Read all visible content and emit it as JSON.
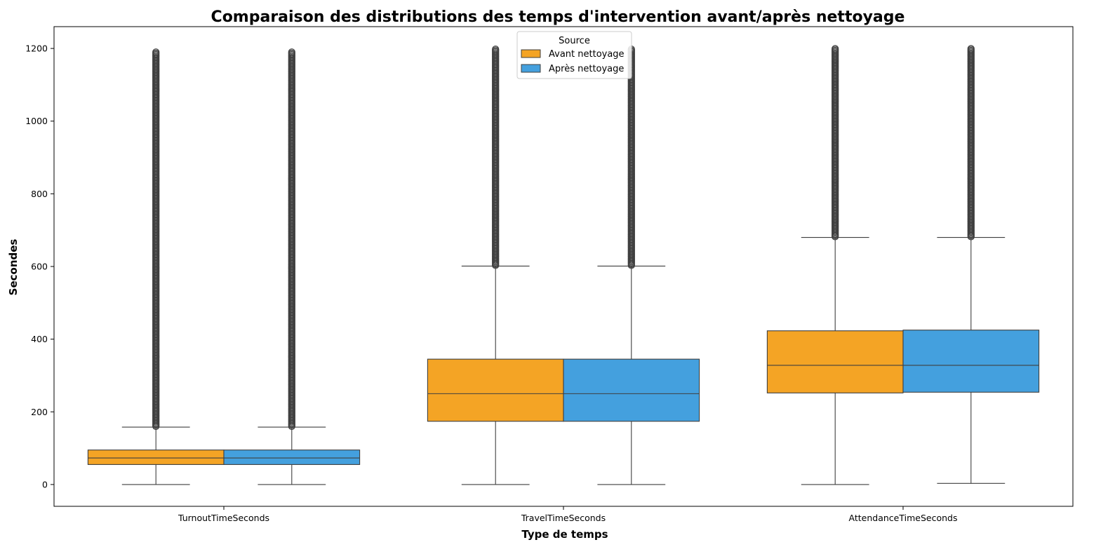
{
  "chart_data": {
    "type": "box",
    "title": "Comparaison des distributions des temps d'intervention avant/après nettoyage",
    "xlabel": "Type de temps",
    "ylabel": "Secondes",
    "categories": [
      "TurnoutTimeSeconds",
      "TravelTimeSeconds",
      "AttendanceTimeSeconds"
    ],
    "ylim": [
      -60,
      1260
    ],
    "yticks": [
      0,
      200,
      400,
      600,
      800,
      1000,
      1200
    ],
    "grid": false,
    "legend": {
      "title": "Source",
      "placement": "top-center",
      "entries": [
        "Avant nettoyage",
        "Après nettoyage"
      ]
    },
    "series": [
      {
        "name": "Avant nettoyage",
        "color": "#f39c12",
        "boxes": [
          {
            "whisker_low": 0,
            "q1": 55,
            "median": 73,
            "q3": 95,
            "whisker_high": 158,
            "outlier_max": 1190
          },
          {
            "whisker_low": 0,
            "q1": 174,
            "median": 250,
            "q3": 345,
            "whisker_high": 601,
            "outlier_max": 1198
          },
          {
            "whisker_low": 0,
            "q1": 252,
            "median": 328,
            "q3": 423,
            "whisker_high": 680,
            "outlier_max": 1200
          }
        ]
      },
      {
        "name": "Après nettoyage",
        "color": "#3498db",
        "boxes": [
          {
            "whisker_low": 0,
            "q1": 55,
            "median": 73,
            "q3": 95,
            "whisker_high": 158,
            "outlier_max": 1190
          },
          {
            "whisker_low": 0,
            "q1": 174,
            "median": 250,
            "q3": 345,
            "whisker_high": 601,
            "outlier_max": 1198
          },
          {
            "whisker_low": 3,
            "q1": 254,
            "median": 328,
            "q3": 425,
            "whisker_high": 680,
            "outlier_max": 1200
          }
        ]
      }
    ]
  }
}
